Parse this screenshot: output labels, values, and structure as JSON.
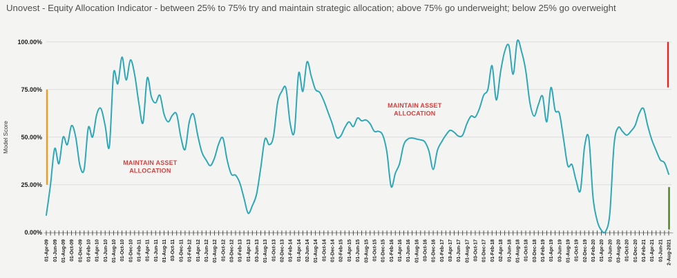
{
  "header": {
    "title": "Unovest - Equity Allocation Indicator - between 25% to 75% try and maintain strategic allocation; above 75% go underweight; below 25% go overweight"
  },
  "chart_data": {
    "type": "line",
    "title": "Unovest - Equity Allocation Indicator",
    "ylabel": "Model Score",
    "ylim": [
      0,
      100
    ],
    "y_tick_labels": [
      "0.00%",
      "25.00%",
      "50.00%",
      "75.00%",
      "100.00%"
    ],
    "y_tick_values": [
      0,
      25,
      50,
      75,
      100
    ],
    "grid": "horizontal",
    "x_start": "Apr-2009",
    "x_end": "Aug-2021",
    "frequency": "monthly",
    "x_label_every_n_points": 2,
    "x_tick_labels": [
      "01-Apr-09",
      "01-Jun-09",
      "01-Aug-09",
      "01-Oct-09",
      "01-Dec-09",
      "01-Feb-10",
      "01-Apr-10",
      "01-Jun-10",
      "01-Aug-10",
      "01-Oct-10",
      "01-Dec-10",
      "01-Feb-11",
      "01-Apr-11",
      "01-Jun-11",
      "01-Aug-11",
      "03-Oct-11",
      "01-Dec-11",
      "01-Feb-12",
      "01-Apr-12",
      "01-Jun-12",
      "01-Aug-12",
      "01-Oct-12",
      "03-Dec-12",
      "01-Feb-13",
      "01-Apr-13",
      "03-Jun-13",
      "01-Aug-13",
      "01-Oct-13",
      "02-Dec-13",
      "01-Feb-14",
      "01-Apr-14",
      "02-Jun-14",
      "01-Aug-14",
      "01-Oct-14",
      "01-Dec-14",
      "02-Feb-15",
      "01-Apr-15",
      "01-Jun-15",
      "03-Aug-15",
      "01-Oct-15",
      "01-Dec-15",
      "01-Feb-16",
      "01-Apr-16",
      "01-Jun-16",
      "01-Aug-16",
      "03-Oct-16",
      "01-Dec-16",
      "01-Feb-17",
      "03-Apr-17",
      "01-Jun-17",
      "01-Aug-17",
      "03-Oct-17",
      "01-Dec-17",
      "01-Feb-18",
      "02-Apr-18",
      "01-Jun-18",
      "01-Aug-18",
      "01-Oct-18",
      "03-Dec-18",
      "01-Feb-19",
      "01-Apr-19",
      "03-Jun-19",
      "01-Aug-19",
      "01-Oct-19",
      "02-Dec-19",
      "01-Feb-20",
      "01-Apr-20",
      "01-Jun-20",
      "03-Aug-20",
      "01-Oct-20",
      "01-Dec-20",
      "01-Feb-21",
      "01-Apr-21",
      "01-Jun-21",
      "2-Aug-2021"
    ],
    "series": [
      {
        "name": "Model Score",
        "color": "#2ea7b7",
        "values": [
          9,
          25,
          44,
          36,
          50,
          46,
          56,
          50,
          35,
          33,
          55,
          50,
          62,
          65,
          56,
          45,
          83.5,
          78,
          92,
          80,
          90.5,
          83,
          68,
          57.5,
          81,
          71,
          68,
          72,
          62,
          58,
          61.5,
          62,
          50,
          43.5,
          58,
          62,
          51,
          42,
          38,
          35,
          39,
          46.5,
          49.5,
          38,
          30.5,
          30,
          26,
          18,
          10,
          14,
          20,
          34,
          49,
          46,
          50,
          68,
          74,
          75.5,
          57,
          53,
          83.5,
          74,
          89.5,
          82,
          75,
          73.5,
          69,
          63,
          57,
          50,
          50.5,
          55,
          58,
          55.5,
          60,
          58.5,
          59,
          57,
          53,
          53,
          51,
          42,
          24,
          31,
          36,
          46,
          49,
          49.5,
          49,
          48.5,
          47.5,
          42.5,
          33,
          43,
          47.5,
          51,
          53.5,
          52.5,
          50.5,
          51,
          57,
          61,
          60.5,
          65,
          72,
          75,
          87.5,
          69.5,
          84,
          95,
          98,
          83,
          100.5,
          95,
          85,
          68,
          61,
          67,
          71.5,
          58,
          76,
          64,
          62.5,
          49,
          35,
          35.5,
          27,
          22,
          45,
          49.5,
          18.5,
          6,
          1,
          0.5,
          10,
          46,
          55,
          53,
          51,
          53,
          56,
          62.5,
          65,
          56,
          48.5,
          43,
          38,
          36.5,
          30.5
        ]
      }
    ],
    "annotations": [
      {
        "lines": [
          "MAINTAIN ASSET",
          "ALLOCATION"
        ],
        "month_index": 24.7,
        "value": 34.3,
        "color": "#d3413d"
      },
      {
        "lines": [
          "MAINTAIN ASSET",
          "ALLOCATION"
        ],
        "month_index": 87.6,
        "value": 64.4,
        "color": "#d3413d"
      }
    ],
    "zone_markers": [
      {
        "name": "maintain-zone-marker",
        "position": "left-edge",
        "from": 25,
        "to": 75,
        "color": "#f09a1f"
      },
      {
        "name": "underweight-zone-marker",
        "position": "right-edge",
        "from": 75,
        "to": 100,
        "color": "#e42620"
      },
      {
        "name": "overweight-zone-marker",
        "position": "right-edge",
        "from": 0,
        "to": 25,
        "color": "#4b7e1c"
      }
    ],
    "colors": {
      "line": "#2ea7b7",
      "gridline": "#dcdcdc",
      "axis": "#707070",
      "tick": "#3f3f3f",
      "tick_label": "#1c1c1c",
      "annotation": "#d3413d",
      "background": "#f4f4f3"
    }
  }
}
